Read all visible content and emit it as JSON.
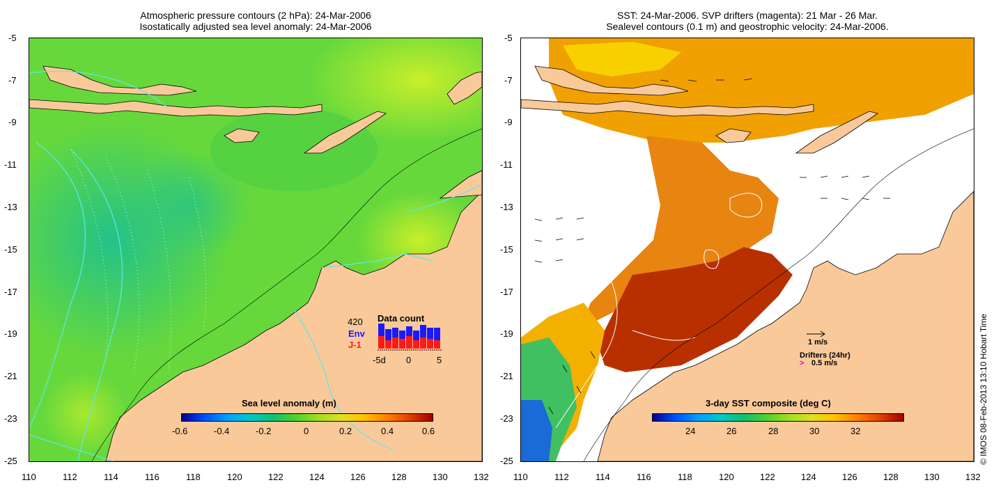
{
  "left": {
    "title_line1": "Atmospheric pressure contours (2 hPa): 24-Mar-2006",
    "title_line2": "Isostatically adjusted sea level anomaly: 24-Mar-2006",
    "colorbar_title": "Sea level anomaly (m)",
    "colorbar_ticks": [
      "-0.6",
      "-0.4",
      "-0.2",
      "0",
      "0.2",
      "0.4",
      "0.6"
    ],
    "inset": {
      "title": "Data count",
      "count": "420",
      "env": "Env",
      "j1": "J-1",
      "axis_ticks": [
        "-5d",
        "0",
        "5"
      ],
      "env_color": "#1a1aff",
      "j1_color": "#ff1a1a"
    }
  },
  "right": {
    "title_line1": "SST: 24-Mar-2006. SVP drifters (magenta): 21 Mar - 26 Mar.",
    "title_line2": "Sealevel contours (0.1 m) and geostrophic velocity: 24-Mar-2006.",
    "colorbar_title": "3-day SST composite (deg C)",
    "colorbar_ticks": [
      "24",
      "26",
      "28",
      "30",
      "32"
    ],
    "velocity_scale": "1 m/s",
    "drifters_label": "Drifters (24hr)",
    "drifters_scale": "0.5 m/s"
  },
  "axes": {
    "y_ticks": [
      "-5",
      "-7",
      "-9",
      "-11",
      "-13",
      "-15",
      "-17",
      "-19",
      "-21",
      "-23",
      "-25"
    ],
    "x_ticks": [
      "110",
      "112",
      "114",
      "116",
      "118",
      "120",
      "122",
      "124",
      "126",
      "128",
      "130",
      "132"
    ]
  },
  "copyright": "© IMOS 08-Feb-2013 13:10 Hobart Time",
  "colors": {
    "land": "#f9c99a",
    "sea_green": "#58d43a",
    "sst_red": "#b83000"
  }
}
